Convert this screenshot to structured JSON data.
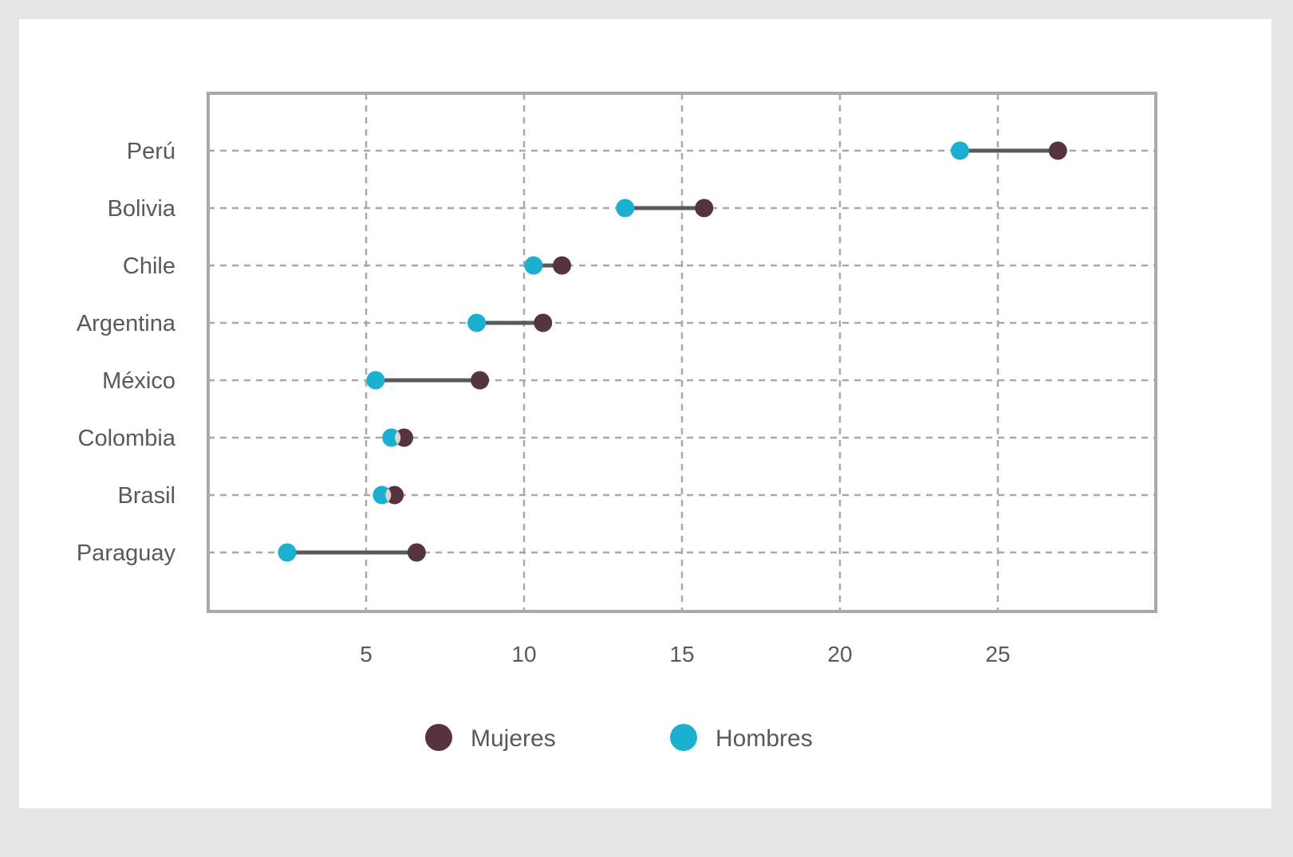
{
  "chart_data": {
    "type": "dumbbell",
    "title": "",
    "xlabel": "",
    "ylabel": "",
    "xlim": [
      0,
      30
    ],
    "x_ticks": [
      5,
      10,
      15,
      20,
      25
    ],
    "grid": true,
    "legend_position": "bottom",
    "categories": [
      "Perú",
      "Bolivia",
      "Chile",
      "Argentina",
      "México",
      "Colombia",
      "Brasil",
      "Paraguay"
    ],
    "series": [
      {
        "name": "Mujeres",
        "color": "#55333f",
        "values": [
          26.9,
          15.7,
          11.2,
          10.6,
          8.6,
          6.2,
          5.9,
          6.6
        ]
      },
      {
        "name": "Hombres",
        "color": "#1bafd0",
        "values": [
          23.8,
          13.2,
          10.3,
          8.5,
          5.3,
          5.8,
          5.5,
          2.5
        ]
      }
    ]
  },
  "legend": {
    "items": [
      {
        "label": "Mujeres",
        "color": "#55333f"
      },
      {
        "label": "Hombres",
        "color": "#1bafd0"
      }
    ]
  },
  "style": {
    "page_bg": "#e6e6e6",
    "card_bg": "#ffffff",
    "frame_color": "#a8a9ab",
    "grid_color": "#a8a9ab",
    "connector_color": "#58595b",
    "overlap_color": "#d8d5cb",
    "text_color": "#58595b"
  }
}
